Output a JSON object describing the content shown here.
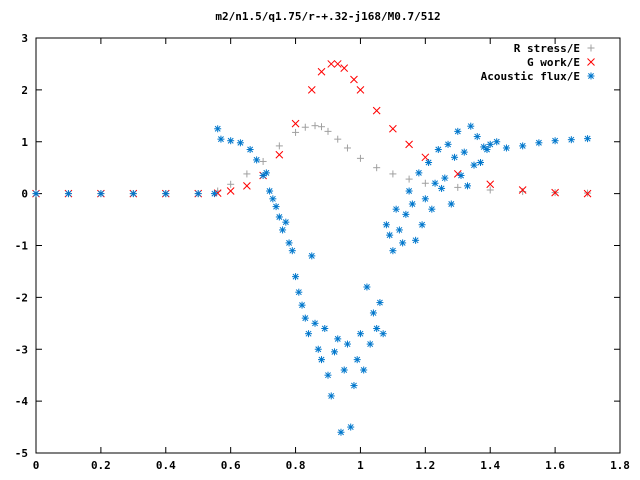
{
  "chart_data": {
    "type": "scatter",
    "title": "m2/n1.5/q1.75/r-+.32-j168/M0.7/512",
    "xlabel": "",
    "ylabel": "",
    "xlim": [
      0,
      1.8
    ],
    "ylim": [
      -5,
      3
    ],
    "xticks": [
      "0",
      "0.2",
      "0.4",
      "0.6",
      "0.8",
      "1",
      "1.2",
      "1.4",
      "1.6",
      "1.8"
    ],
    "yticks": [
      "3",
      "2",
      "1",
      "0",
      "-1",
      "-2",
      "-3",
      "-4",
      "-5"
    ],
    "grid": false,
    "legend_position": "top-right",
    "series": [
      {
        "name": "R stress/E",
        "marker": "+",
        "color": "#a0a0a0",
        "x": [
          0.0,
          0.1,
          0.2,
          0.3,
          0.4,
          0.5,
          0.56,
          0.6,
          0.65,
          0.7,
          0.75,
          0.8,
          0.83,
          0.86,
          0.88,
          0.9,
          0.93,
          0.96,
          1.0,
          1.05,
          1.1,
          1.15,
          1.2,
          1.3,
          1.4,
          1.5,
          1.6,
          1.7
        ],
        "y": [
          0.0,
          0.0,
          0.0,
          0.0,
          0.0,
          0.0,
          0.05,
          0.18,
          0.38,
          0.62,
          0.92,
          1.18,
          1.28,
          1.31,
          1.29,
          1.2,
          1.05,
          0.88,
          0.68,
          0.5,
          0.38,
          0.28,
          0.2,
          0.12,
          0.07,
          0.04,
          0.02,
          0.01
        ]
      },
      {
        "name": "G work/E",
        "marker": "x",
        "color": "#ff0000",
        "x": [
          0.0,
          0.1,
          0.2,
          0.3,
          0.4,
          0.5,
          0.56,
          0.6,
          0.65,
          0.7,
          0.75,
          0.8,
          0.85,
          0.88,
          0.91,
          0.93,
          0.95,
          0.98,
          1.0,
          1.05,
          1.1,
          1.15,
          1.2,
          1.3,
          1.4,
          1.5,
          1.6,
          1.7
        ],
        "y": [
          0.0,
          0.0,
          0.0,
          0.0,
          0.0,
          0.0,
          0.01,
          0.05,
          0.15,
          0.35,
          0.75,
          1.35,
          2.0,
          2.35,
          2.5,
          2.5,
          2.42,
          2.2,
          2.0,
          1.6,
          1.25,
          0.95,
          0.7,
          0.38,
          0.18,
          0.07,
          0.02,
          0.0
        ]
      },
      {
        "name": "Acoustic flux/E",
        "marker": "*",
        "color": "#0077cc",
        "x": [
          0.0,
          0.1,
          0.2,
          0.3,
          0.4,
          0.5,
          0.55,
          0.56,
          0.57,
          0.6,
          0.63,
          0.66,
          0.68,
          0.7,
          0.71,
          0.72,
          0.73,
          0.74,
          0.75,
          0.76,
          0.77,
          0.78,
          0.79,
          0.8,
          0.81,
          0.82,
          0.83,
          0.84,
          0.85,
          0.86,
          0.87,
          0.88,
          0.89,
          0.9,
          0.91,
          0.92,
          0.93,
          0.94,
          0.95,
          0.96,
          0.97,
          0.98,
          0.99,
          1.0,
          1.01,
          1.02,
          1.03,
          1.04,
          1.05,
          1.06,
          1.07,
          1.08,
          1.09,
          1.1,
          1.11,
          1.12,
          1.13,
          1.14,
          1.15,
          1.16,
          1.17,
          1.18,
          1.19,
          1.2,
          1.21,
          1.22,
          1.23,
          1.24,
          1.25,
          1.26,
          1.27,
          1.28,
          1.29,
          1.3,
          1.31,
          1.32,
          1.33,
          1.34,
          1.35,
          1.36,
          1.37,
          1.38,
          1.39,
          1.4,
          1.42,
          1.45,
          1.5,
          1.55,
          1.6,
          1.65,
          1.7
        ],
        "y": [
          0.0,
          0.0,
          0.0,
          0.0,
          0.0,
          0.0,
          0.0,
          1.25,
          1.05,
          1.02,
          0.98,
          0.85,
          0.65,
          0.35,
          0.4,
          0.05,
          -0.1,
          -0.25,
          -0.45,
          -0.7,
          -0.55,
          -0.95,
          -1.1,
          -1.6,
          -1.9,
          -2.15,
          -2.4,
          -2.7,
          -1.2,
          -2.5,
          -3.0,
          -3.2,
          -2.6,
          -3.5,
          -3.9,
          -3.05,
          -2.8,
          -4.6,
          -3.4,
          -2.9,
          -4.5,
          -3.7,
          -3.2,
          -2.7,
          -3.4,
          -1.8,
          -2.9,
          -2.3,
          -2.6,
          -2.1,
          -2.7,
          -0.6,
          -0.8,
          -1.1,
          -0.3,
          -0.7,
          -0.95,
          -0.4,
          0.05,
          -0.2,
          -0.9,
          0.4,
          -0.6,
          -0.1,
          0.6,
          -0.3,
          0.2,
          0.85,
          0.1,
          0.3,
          0.95,
          -0.2,
          0.7,
          1.2,
          0.35,
          0.8,
          0.15,
          1.3,
          0.55,
          1.1,
          0.6,
          0.9,
          0.85,
          0.95,
          1.0,
          0.88,
          0.92,
          0.98,
          1.02,
          1.04,
          1.06
        ]
      }
    ]
  }
}
